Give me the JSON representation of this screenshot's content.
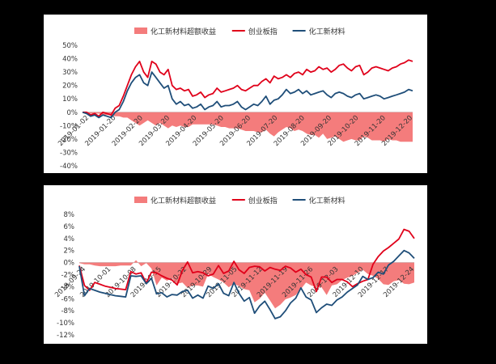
{
  "chart_data": [
    {
      "type": "area",
      "legend": [
        {
          "label": "化工新材料超额收益",
          "color": "#f47c7c",
          "kind": "area"
        },
        {
          "label": "创业板指",
          "color": "#e0001a",
          "kind": "line"
        },
        {
          "label": "化工新材料",
          "color": "#1f4e79",
          "kind": "line"
        }
      ],
      "legend_position": "top",
      "ylim": [
        -40,
        50
      ],
      "yticks": [
        "50%",
        "40%",
        "30%",
        "20%",
        "10%",
        "0%",
        "-10%",
        "-20%",
        "-30%",
        "-40%"
      ],
      "ytick_values": [
        50,
        40,
        30,
        20,
        10,
        0,
        -10,
        -20,
        -30,
        -40
      ],
      "xticks": [
        "2019-01-02",
        "2019-01-20",
        "2019-02-20",
        "2019-03-20",
        "2019-04-20",
        "2019-05-20",
        "2019-06-20",
        "2019-07-20",
        "2019-08-20",
        "2019-09-20",
        "2019-10-20",
        "2019-11-20",
        "2019-12-20"
      ],
      "x": [
        0,
        3,
        6,
        9,
        12,
        15,
        18,
        21,
        24,
        27,
        30,
        33,
        36,
        39,
        42,
        45,
        48,
        51,
        54,
        57,
        60,
        63,
        66,
        69,
        72,
        75,
        78,
        81,
        84,
        87,
        90,
        93,
        96,
        99,
        102,
        105,
        108,
        111,
        114,
        117,
        120,
        123,
        126,
        129,
        132,
        135,
        138,
        141,
        144,
        147,
        150,
        153,
        156,
        159,
        162,
        165,
        168,
        171,
        174,
        177,
        180,
        183,
        186,
        189,
        192,
        195,
        198,
        201,
        204,
        207,
        210,
        213,
        216,
        219,
        222,
        225,
        228,
        231,
        234,
        237,
        240,
        243
      ],
      "series": [
        {
          "name": "创业板指",
          "color": "#e0001a",
          "values": [
            0,
            0,
            -2,
            -1,
            -3,
            0,
            -1,
            -2,
            3,
            5,
            12,
            20,
            28,
            34,
            38,
            30,
            26,
            38,
            36,
            30,
            28,
            32,
            20,
            17,
            18,
            16,
            17,
            12,
            13,
            15,
            11,
            13,
            14,
            18,
            15,
            16,
            17,
            18,
            20,
            17,
            16,
            18,
            20,
            20,
            23,
            25,
            22,
            27,
            25,
            26,
            28,
            26,
            29,
            30,
            28,
            32,
            30,
            31,
            34,
            32,
            33,
            30,
            32,
            35,
            36,
            33,
            31,
            34,
            35,
            28,
            30,
            33,
            34,
            33,
            32,
            31,
            33,
            34,
            36,
            37,
            39,
            38
          ]
        },
        {
          "name": "化工新材料",
          "color": "#1f4e79",
          "values": [
            0,
            -1,
            -3,
            -2,
            -4,
            -2,
            -3,
            -4,
            0,
            2,
            8,
            16,
            22,
            26,
            28,
            22,
            20,
            30,
            26,
            22,
            18,
            20,
            10,
            6,
            8,
            5,
            6,
            3,
            4,
            6,
            2,
            4,
            5,
            8,
            4,
            5,
            5,
            6,
            8,
            4,
            2,
            4,
            6,
            5,
            8,
            12,
            6,
            9,
            10,
            13,
            17,
            14,
            15,
            17,
            14,
            16,
            13,
            14,
            15,
            16,
            13,
            11,
            14,
            15,
            14,
            12,
            11,
            13,
            14,
            10,
            11,
            12,
            13,
            12,
            10,
            11,
            12,
            13,
            14,
            15,
            17,
            16
          ]
        },
        {
          "name": "化工新材料超额收益",
          "color": "#f47c7c",
          "values": [
            0,
            -1,
            -1,
            -1,
            -1,
            -2,
            -2,
            -2,
            -3,
            -3,
            -4,
            -4,
            -6,
            -8,
            -10,
            -8,
            -6,
            -8,
            -10,
            -8,
            -10,
            -12,
            -10,
            -11,
            -10,
            -11,
            -11,
            -9,
            -9,
            -9,
            -9,
            -9,
            -9,
            -10,
            -11,
            -11,
            -12,
            -12,
            -12,
            -13,
            -14,
            -14,
            -14,
            -15,
            -15,
            -13,
            -16,
            -18,
            -15,
            -13,
            -11,
            -12,
            -14,
            -13,
            -14,
            -16,
            -17,
            -17,
            -19,
            -16,
            -20,
            -19,
            -18,
            -20,
            -22,
            -21,
            -20,
            -21,
            -21,
            -18,
            -19,
            -21,
            -21,
            -21,
            -22,
            -20,
            -21,
            -21,
            -22,
            -22,
            -22,
            -22
          ]
        }
      ]
    },
    {
      "type": "area",
      "legend": [
        {
          "label": "化工新材料超额收益",
          "color": "#f47c7c",
          "kind": "area"
        },
        {
          "label": "创业板指",
          "color": "#e0001a",
          "kind": "line"
        },
        {
          "label": "化工新材料",
          "color": "#1f4e79",
          "kind": "line"
        }
      ],
      "legend_position": "top",
      "ylim": [
        -12,
        8
      ],
      "yticks": [
        "8%",
        "6%",
        "4%",
        "2%",
        "0%",
        "-2%",
        "-4%",
        "-6%",
        "-8%",
        "-10%",
        "-12%"
      ],
      "ytick_values": [
        8,
        6,
        4,
        2,
        0,
        -2,
        -4,
        -6,
        -8,
        -10,
        -12
      ],
      "xticks": [
        "2019-09-24",
        "2019-10-01",
        "2019-10-08",
        "2019-10-15",
        "2019-10-22",
        "2019-10-29",
        "2019-11-05",
        "2019-11-12",
        "2019-11-19",
        "2019-11-26",
        "2019-12-03",
        "2019-12-10",
        "2019-12-17",
        "2019-12-24"
      ],
      "x": [
        0,
        1,
        2,
        3,
        4,
        5,
        6,
        7,
        8,
        9,
        10,
        11,
        12,
        13,
        14,
        15,
        16,
        17,
        18,
        19,
        20,
        21,
        22,
        23,
        24,
        25,
        26,
        27,
        28,
        29,
        30,
        31,
        32,
        33,
        34,
        35,
        36,
        37,
        38,
        39,
        40,
        41,
        42,
        43,
        44,
        45,
        46,
        47,
        48,
        49,
        50,
        51,
        52,
        53,
        54,
        55,
        56,
        57,
        58,
        59,
        60,
        61,
        62,
        63,
        64,
        65
      ],
      "series": [
        {
          "name": "创业板指",
          "color": "#e0001a",
          "values": [
            -0.5,
            -3.8,
            -4.6,
            -3.3,
            -3.6,
            -3.9,
            -4.1,
            -4.3,
            -4.4,
            -4.5,
            -1.5,
            -1.9,
            -1.7,
            -3.4,
            -1.6,
            -1.7,
            -2.2,
            -2.6,
            -2.9,
            -3.7,
            -1.3,
            0.1,
            -1.7,
            -1.5,
            -1.7,
            -2.2,
            -1.9,
            -0.5,
            -1.8,
            -1.4,
            0.2,
            -1.2,
            -1.8,
            -0.8,
            -0.6,
            -0.7,
            -1.4,
            -0.8,
            -1.1,
            -1.3,
            -0.6,
            -0.9,
            -1.6,
            -1.1,
            -2.0,
            -2.4,
            -4.8,
            -2.4,
            -2.4,
            -3.3,
            -2.8,
            -2.8,
            -3.2,
            -4.0,
            -3.5,
            -3.1,
            -2.8,
            -0.3,
            1.0,
            1.9,
            2.5,
            3.2,
            3.9,
            5.5,
            5.2,
            4.0
          ]
        },
        {
          "name": "化工新材料",
          "color": "#1f4e79",
          "values": [
            -0.6,
            -5.5,
            -4.3,
            -4.6,
            -4.9,
            -5.1,
            -5.3,
            -5.5,
            -5.6,
            -5.7,
            -2.2,
            -2.3,
            -2.2,
            -3.5,
            -2.6,
            -5.2,
            -5.0,
            -5.7,
            -5.3,
            -5.4,
            -4.8,
            -4.6,
            -5.9,
            -5.4,
            -5.9,
            -3.9,
            -4.3,
            -3.5,
            -5.1,
            -5.5,
            -3.3,
            -5.1,
            -6.4,
            -5.8,
            -8.4,
            -7.2,
            -6.4,
            -7.8,
            -9.3,
            -9.0,
            -8.0,
            -6.7,
            -5.9,
            -4.2,
            -5.7,
            -6.2,
            -8.3,
            -7.5,
            -6.9,
            -7.1,
            -6.2,
            -5.7,
            -4.9,
            -4.3,
            -3.7,
            -2.3,
            -2.8,
            -2.5,
            -1.6,
            -1.9,
            -0.4,
            0.2,
            1.1,
            2.0,
            1.6,
            0.7
          ]
        },
        {
          "name": "化工新材料超额收益",
          "color": "#f47c7c",
          "values": [
            -0.1,
            -0.3,
            -0.3,
            -0.5,
            -0.6,
            -0.6,
            -0.6,
            -0.6,
            -0.5,
            -0.5,
            -0.5,
            0.4,
            -0.6,
            -0.1,
            -1.0,
            -3.8,
            -2.5,
            -3.0,
            -2.6,
            -3.5,
            -3.3,
            -4.2,
            -3.8,
            -3.8,
            -4.0,
            -1.9,
            -2.4,
            -2.8,
            -3.3,
            -4.1,
            -3.5,
            -3.9,
            -4.4,
            -4.6,
            -6.6,
            -6.0,
            -5.0,
            -6.3,
            -7.6,
            -7.0,
            -6.1,
            -5.8,
            -5.4,
            -4.4,
            -3.3,
            -3.8,
            -4.1,
            -4.1,
            -5.4,
            -3.8,
            -3.6,
            -2.9,
            -2.5,
            -2.2,
            -1.7,
            -1.2,
            -1.9,
            -2.2,
            -2.7,
            -3.6,
            -3.7,
            -3.1,
            -2.9,
            -3.5,
            -3.6,
            -3.3
          ]
        }
      ]
    }
  ]
}
